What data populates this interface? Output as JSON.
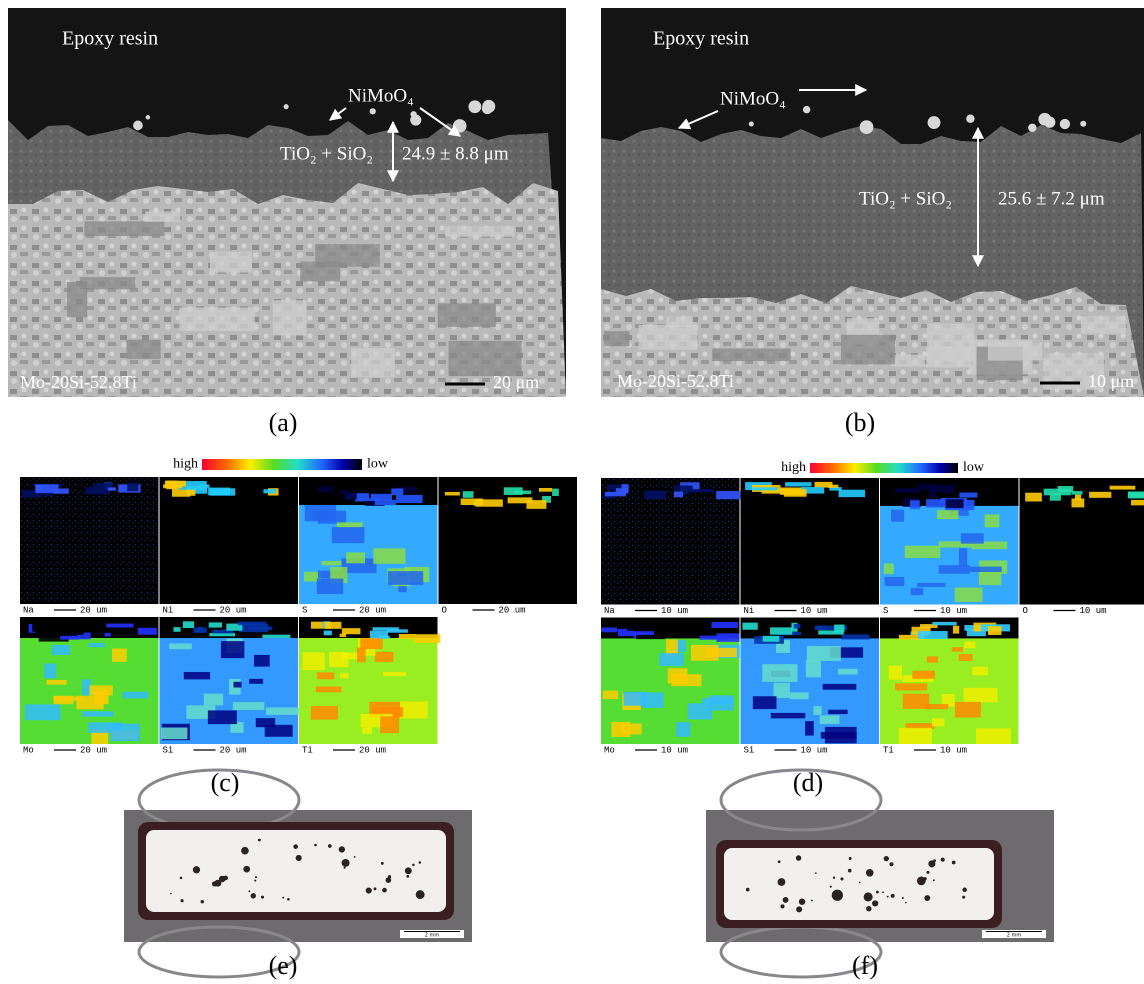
{
  "sem_panels": [
    {
      "caption": "(a)",
      "resin": "Epoxy resin",
      "oxide": "NiMoO₄",
      "scale_layer": "TiO₂ + SiO₂",
      "thickness": "24.9 ± 8.8 μm",
      "alloy": "Mo-20Si-52.8Ti",
      "scale_bar": "20 μm"
    },
    {
      "caption": "(b)",
      "resin": "Epoxy resin",
      "oxide": "NiMoO₄",
      "scale_layer": "TiO₂ + SiO₂",
      "thickness": "25.6 ± 7.2 μm",
      "alloy": "Mo-20Si-52.8Ti",
      "scale_bar": "10 μm"
    }
  ],
  "eds_panels": [
    {
      "caption": "(c)",
      "high": "high",
      "low": "low",
      "maps": [
        {
          "element": "Na",
          "scale_bar": "20 um"
        },
        {
          "element": "Ni",
          "scale_bar": "20 um"
        },
        {
          "element": "S",
          "scale_bar": "20 um"
        },
        {
          "element": "O",
          "scale_bar": "20 um"
        },
        {
          "element": "Mo",
          "scale_bar": "20 um"
        },
        {
          "element": "Si",
          "scale_bar": "20 um"
        },
        {
          "element": "Ti",
          "scale_bar": "20 um"
        }
      ]
    },
    {
      "caption": "(d)",
      "high": "high",
      "low": "low",
      "maps": [
        {
          "element": "Na",
          "scale_bar": "10 um"
        },
        {
          "element": "Ni",
          "scale_bar": "10 um"
        },
        {
          "element": "S",
          "scale_bar": "10 um"
        },
        {
          "element": "O",
          "scale_bar": "10 um"
        },
        {
          "element": "Mo",
          "scale_bar": "10 um"
        },
        {
          "element": "Si",
          "scale_bar": "10 um"
        },
        {
          "element": "Ti",
          "scale_bar": "10 um"
        }
      ]
    }
  ],
  "optical_panels": [
    {
      "caption": "(e)",
      "scale_bar": "2 mm"
    },
    {
      "caption": "(f)",
      "scale_bar": "2 mm"
    }
  ]
}
